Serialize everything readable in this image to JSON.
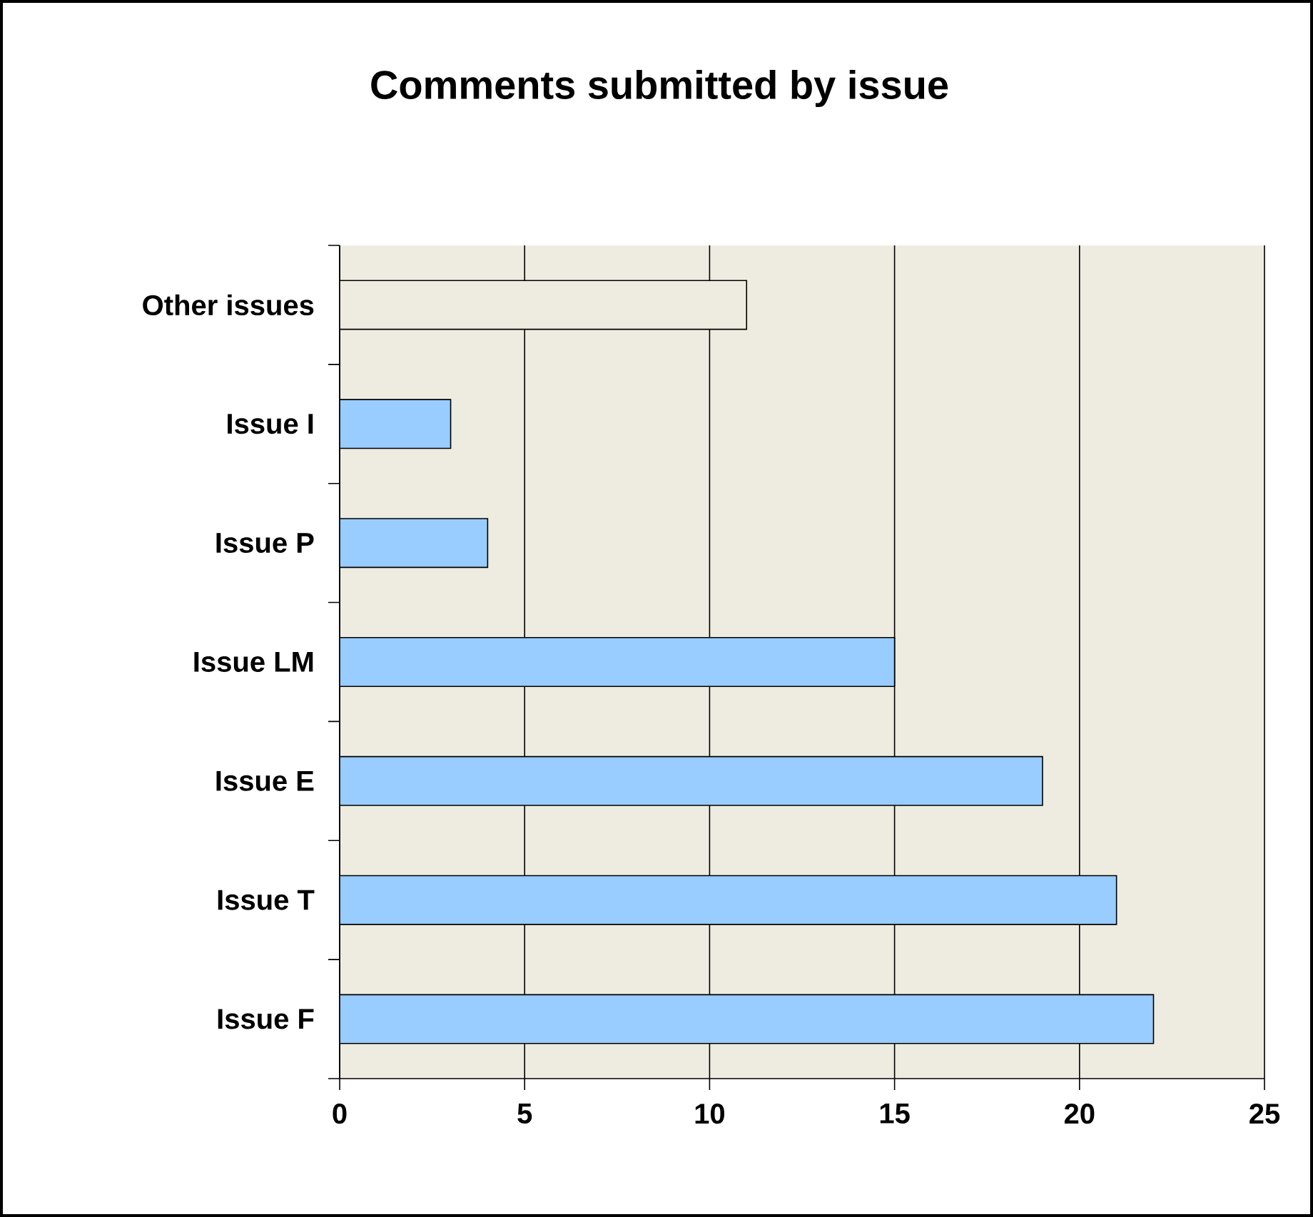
{
  "chart_data": {
    "type": "bar",
    "orientation": "horizontal",
    "title": "Comments submitted by issue",
    "categories": [
      "Other issues",
      "Issue I",
      "Issue P",
      "Issue LM",
      "Issue E",
      "Issue T",
      "Issue F"
    ],
    "values": [
      11,
      3,
      4,
      15,
      19,
      21,
      22
    ],
    "colors": [
      "#eeece1",
      "#99ccff",
      "#99ccff",
      "#99ccff",
      "#99ccff",
      "#99ccff",
      "#99ccff"
    ],
    "xlim": [
      0,
      25
    ],
    "xticks": [
      0,
      5,
      10,
      15,
      20,
      25
    ],
    "grid": "x"
  }
}
